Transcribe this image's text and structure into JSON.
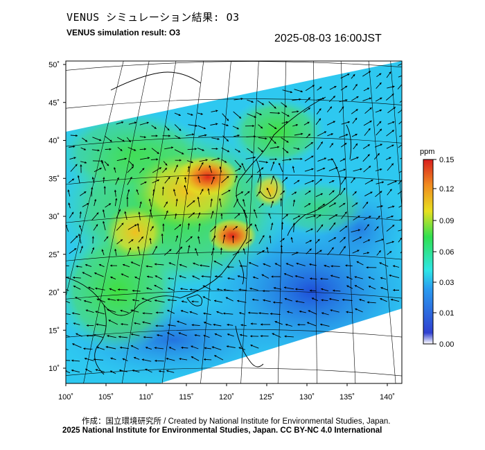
{
  "header": {
    "title_jp": "VENUS シミュレーション結果: O3",
    "title_en": "VENUS simulation result: O3",
    "timestamp": "2025-08-03 16:00JST"
  },
  "colorbar": {
    "unit": "ppm",
    "ticks": [
      "0.15",
      "0.12",
      "0.09",
      "0.06",
      "0.03",
      "0.01",
      "0.00"
    ],
    "tick_values": [
      0.15,
      0.12,
      0.09,
      0.06,
      0.03,
      0.01,
      0.0
    ],
    "colors": [
      "#ffffff",
      "#1f3fd8",
      "#2a9cf0",
      "#2ee6e6",
      "#30e050",
      "#e8e020",
      "#f08c20",
      "#d81e1e"
    ]
  },
  "axes": {
    "lat_labels": [
      "50˚",
      "45˚",
      "40˚",
      "35˚",
      "30˚",
      "25˚",
      "20˚",
      "15˚",
      "10˚"
    ],
    "lat_values": [
      50,
      45,
      40,
      35,
      30,
      25,
      20,
      15,
      10
    ],
    "lon_labels": [
      "100˚",
      "105˚",
      "110˚",
      "115˚",
      "120˚",
      "125˚",
      "130˚",
      "135˚",
      "140˚"
    ],
    "lon_values": [
      100,
      105,
      110,
      115,
      120,
      125,
      130,
      135,
      140
    ]
  },
  "footer": {
    "credit": "作成：国立環境研究所 / Created by National Institute for Environmental Studies, Japan.",
    "license": "2025 National Institute for Environmental Studies, Japan. CC BY-NC 4.0 International"
  }
}
